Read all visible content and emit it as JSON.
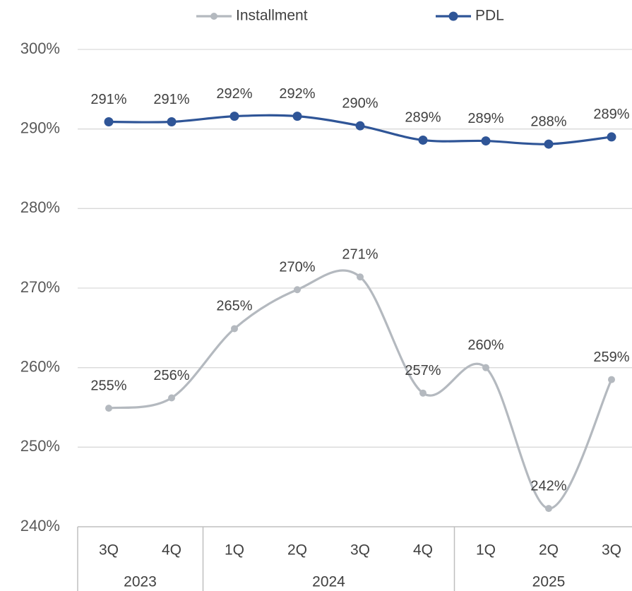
{
  "chart_data": {
    "type": "line",
    "category_groups": [
      {
        "name": "2023",
        "categories": [
          "3Q",
          "4Q"
        ]
      },
      {
        "name": "2024",
        "categories": [
          "1Q",
          "2Q",
          "3Q",
          "4Q"
        ]
      },
      {
        "name": "2025",
        "categories": [
          "1Q",
          "2Q",
          "3Q"
        ]
      }
    ],
    "series": [
      {
        "name": "Installment",
        "color": "#b4b9bf",
        "values": [
          254.9,
          256.2,
          264.9,
          269.8,
          271.4,
          256.8,
          260.0,
          242.3,
          258.5
        ],
        "value_labels": [
          "255%",
          "256%",
          "265%",
          "270%",
          "271%",
          "257%",
          "260%",
          "242%",
          "259%"
        ]
      },
      {
        "name": "PDL",
        "color": "#2f5597",
        "values": [
          290.9,
          290.9,
          291.6,
          291.6,
          290.4,
          288.6,
          288.5,
          288.1,
          289.0
        ],
        "value_labels": [
          "291%",
          "291%",
          "292%",
          "292%",
          "290%",
          "289%",
          "289%",
          "288%",
          "289%"
        ]
      }
    ],
    "ylim": [
      240,
      300
    ],
    "yticks": [
      {
        "value": 240,
        "label": "240%"
      },
      {
        "value": 250,
        "label": "250%"
      },
      {
        "value": 260,
        "label": "260%"
      },
      {
        "value": 270,
        "label": "270%"
      },
      {
        "value": 280,
        "label": "280%"
      },
      {
        "value": 290,
        "label": "290%"
      },
      {
        "value": 300,
        "label": "300%"
      }
    ],
    "grid": true,
    "legend": "top",
    "smooth": true
  }
}
